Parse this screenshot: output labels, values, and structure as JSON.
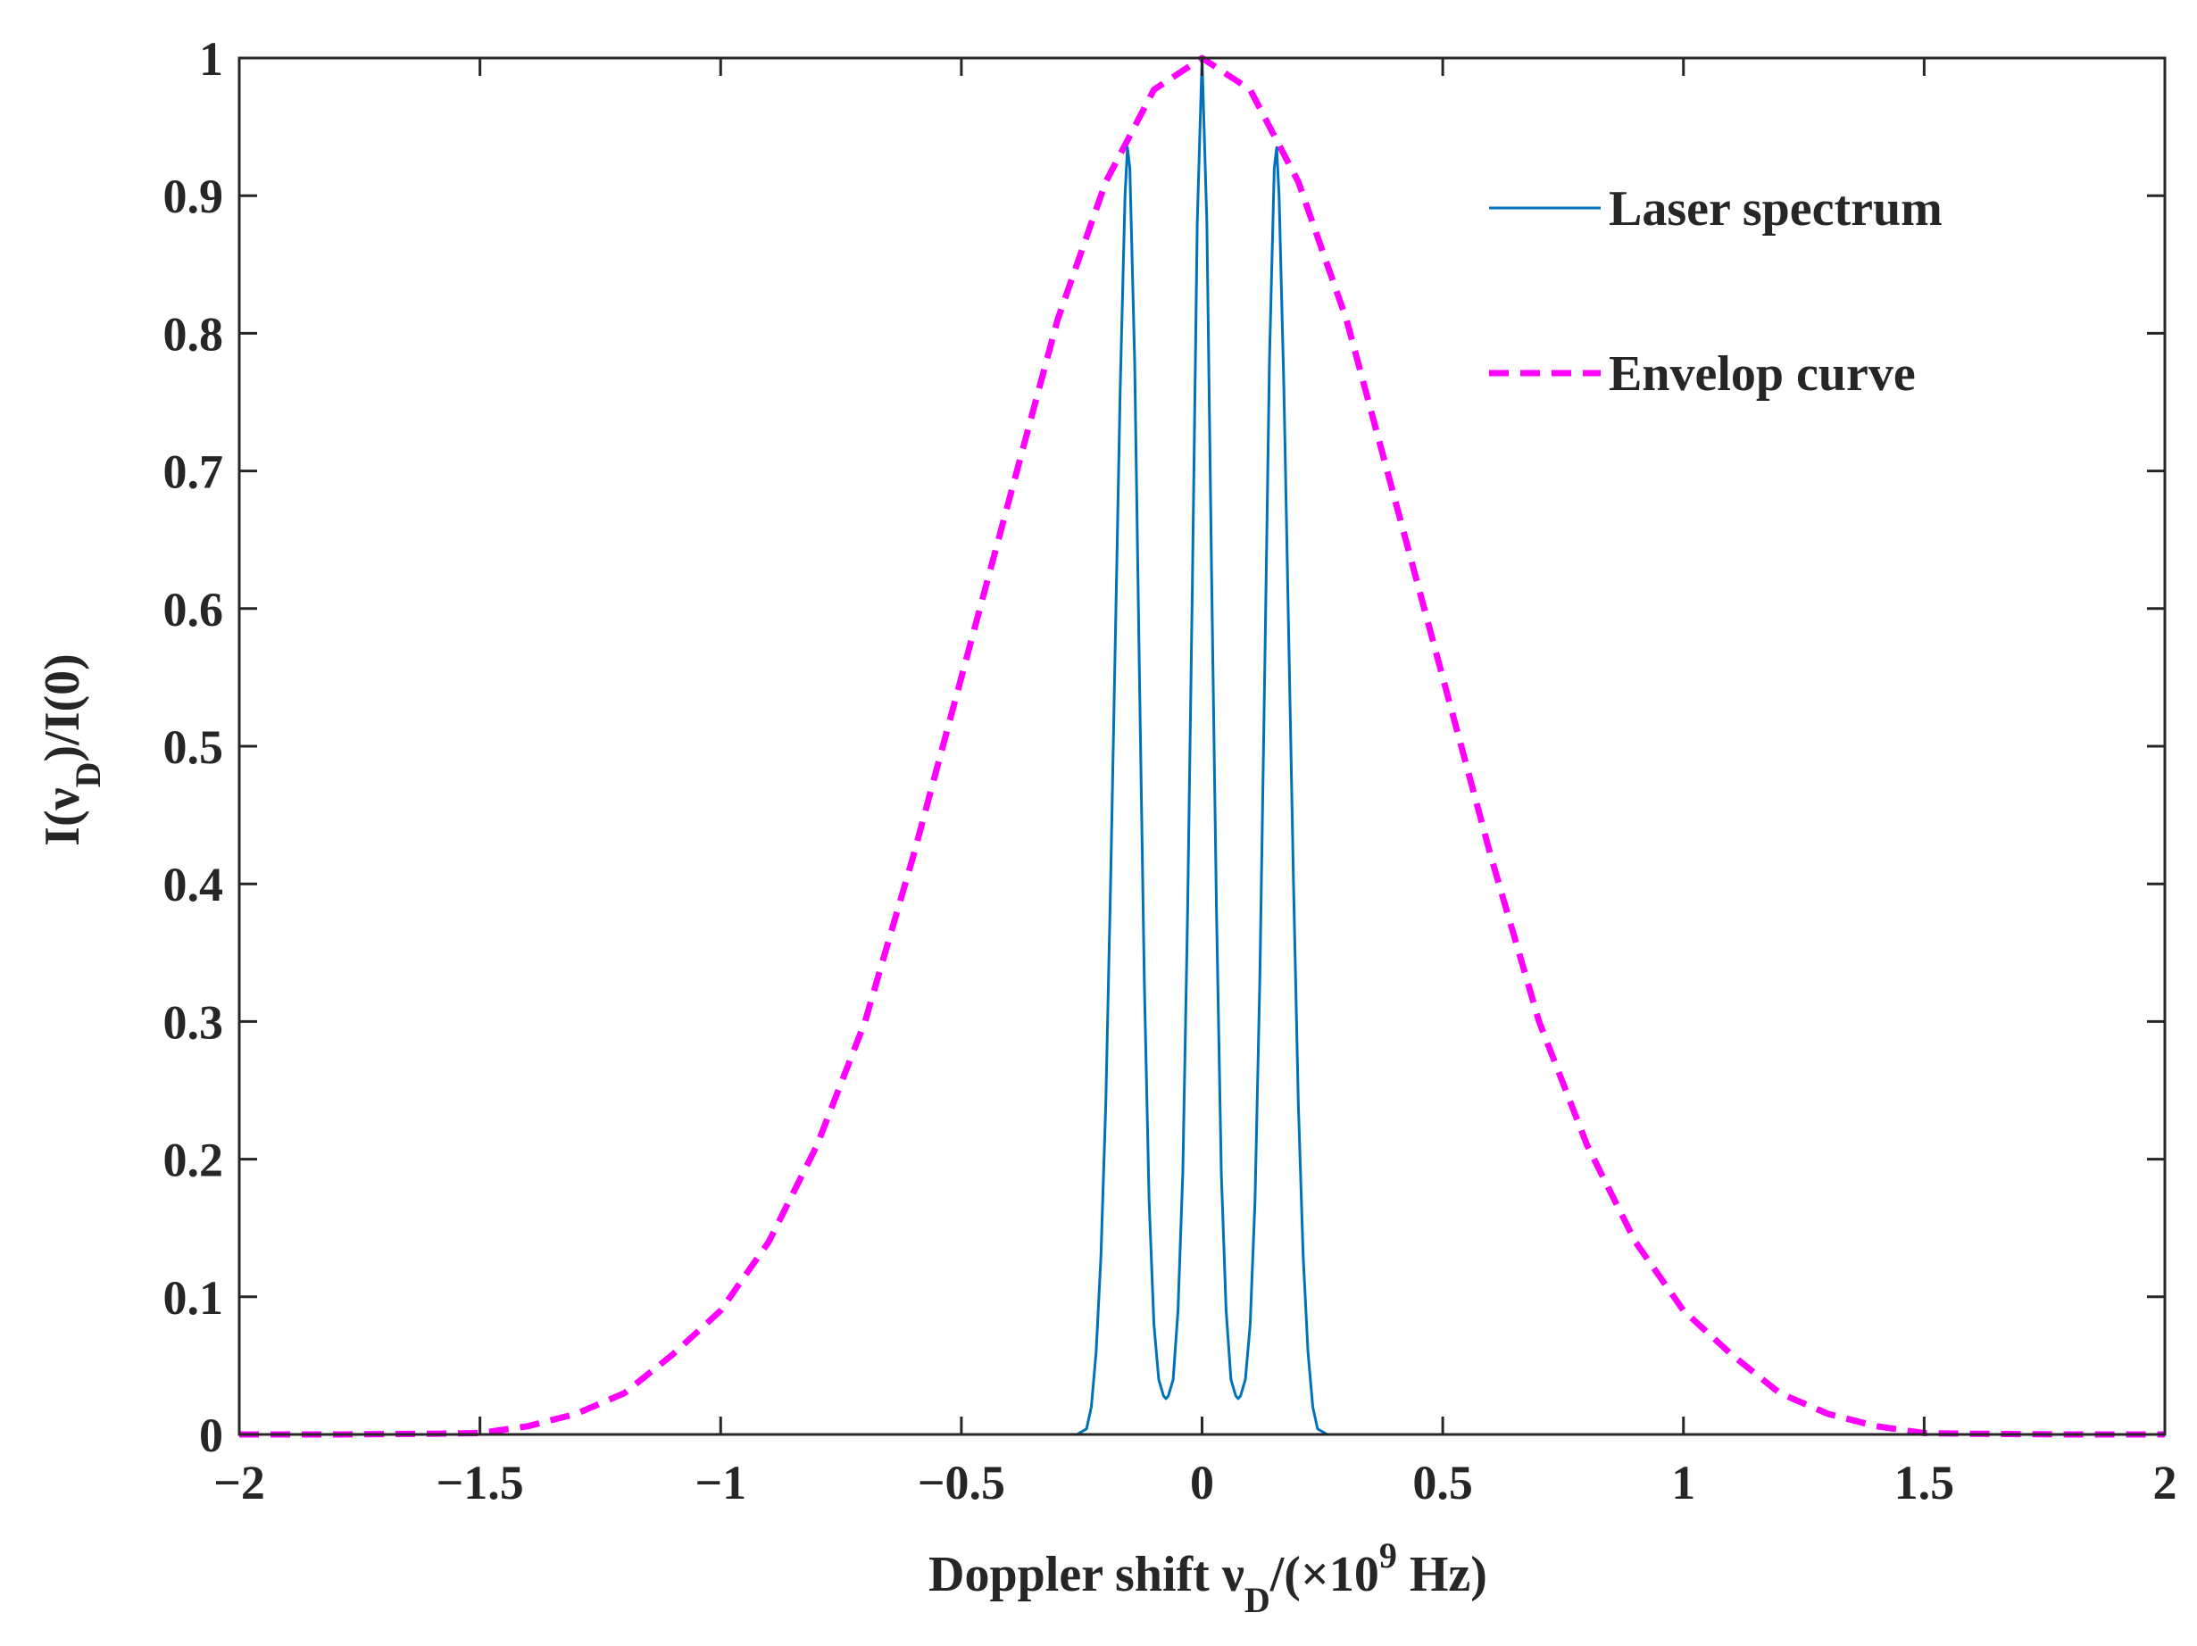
{
  "chart_data": {
    "type": "line",
    "xlabel": {
      "prefix": "Doppler shift ν",
      "sub": "D",
      "mid": "/(×10",
      "sup": "9",
      "suffix": " Hz)"
    },
    "ylabel": {
      "prefix": "I(ν",
      "sub": "D",
      "suffix": ")/I(0)"
    },
    "xlim": [
      -2,
      2
    ],
    "ylim": [
      0,
      1
    ],
    "xticks": [
      -2,
      -1.5,
      -1,
      -0.5,
      0,
      0.5,
      1,
      1.5,
      2
    ],
    "xtick_labels": [
      "−2",
      "−1.5",
      "−1",
      "−0.5",
      "0",
      "0.5",
      "1",
      "1.5",
      "2"
    ],
    "yticks": [
      0,
      0.1,
      0.2,
      0.3,
      0.4,
      0.5,
      0.6,
      0.7,
      0.8,
      0.9,
      1
    ],
    "ytick_labels": [
      "0",
      "0.1",
      "0.2",
      "0.3",
      "0.4",
      "0.5",
      "0.6",
      "0.7",
      "0.8",
      "0.9",
      "1"
    ],
    "grid": false,
    "legend_position": "top-right",
    "series": [
      {
        "name": "Laser spectrum",
        "color": "#0072bd",
        "style": "solid",
        "points": [
          [
            -2.0,
            0
          ],
          [
            -0.26,
            0
          ],
          [
            -0.24,
            0.004
          ],
          [
            -0.23,
            0.02
          ],
          [
            -0.22,
            0.06
          ],
          [
            -0.21,
            0.13
          ],
          [
            -0.2,
            0.24
          ],
          [
            -0.19,
            0.4
          ],
          [
            -0.18,
            0.58
          ],
          [
            -0.17,
            0.76
          ],
          [
            -0.16,
            0.9
          ],
          [
            -0.155,
            0.935
          ],
          [
            -0.15,
            0.92
          ],
          [
            -0.14,
            0.78
          ],
          [
            -0.13,
            0.55
          ],
          [
            -0.12,
            0.33
          ],
          [
            -0.11,
            0.17
          ],
          [
            -0.1,
            0.08
          ],
          [
            -0.09,
            0.04
          ],
          [
            -0.08,
            0.028
          ],
          [
            -0.075,
            0.026
          ],
          [
            -0.07,
            0.028
          ],
          [
            -0.06,
            0.04
          ],
          [
            -0.05,
            0.09
          ],
          [
            -0.04,
            0.19
          ],
          [
            -0.03,
            0.38
          ],
          [
            -0.02,
            0.62
          ],
          [
            -0.01,
            0.88
          ],
          [
            0.0,
            1.0
          ],
          [
            0.01,
            0.88
          ],
          [
            0.02,
            0.62
          ],
          [
            0.03,
            0.38
          ],
          [
            0.04,
            0.19
          ],
          [
            0.05,
            0.09
          ],
          [
            0.06,
            0.04
          ],
          [
            0.07,
            0.028
          ],
          [
            0.075,
            0.026
          ],
          [
            0.08,
            0.028
          ],
          [
            0.09,
            0.04
          ],
          [
            0.1,
            0.08
          ],
          [
            0.11,
            0.17
          ],
          [
            0.12,
            0.33
          ],
          [
            0.13,
            0.55
          ],
          [
            0.14,
            0.78
          ],
          [
            0.15,
            0.92
          ],
          [
            0.155,
            0.935
          ],
          [
            0.16,
            0.9
          ],
          [
            0.17,
            0.76
          ],
          [
            0.18,
            0.58
          ],
          [
            0.19,
            0.4
          ],
          [
            0.2,
            0.24
          ],
          [
            0.21,
            0.13
          ],
          [
            0.22,
            0.06
          ],
          [
            0.23,
            0.02
          ],
          [
            0.24,
            0.004
          ],
          [
            0.26,
            0
          ],
          [
            2.0,
            0
          ]
        ]
      },
      {
        "name": "Envelop curve",
        "color": "#ff00ff",
        "style": "dashed",
        "points": [
          [
            -2.0,
            0.0
          ],
          [
            -1.8,
            0.0
          ],
          [
            -1.6,
            0.0005
          ],
          [
            -1.5,
            0.001
          ],
          [
            -1.4,
            0.006
          ],
          [
            -1.3,
            0.015
          ],
          [
            -1.2,
            0.03
          ],
          [
            -1.1,
            0.058
          ],
          [
            -1.0,
            0.09
          ],
          [
            -0.9,
            0.14
          ],
          [
            -0.8,
            0.21
          ],
          [
            -0.7,
            0.3
          ],
          [
            -0.6,
            0.42
          ],
          [
            -0.5,
            0.55
          ],
          [
            -0.4,
            0.68
          ],
          [
            -0.3,
            0.81
          ],
          [
            -0.2,
            0.91
          ],
          [
            -0.1,
            0.977
          ],
          [
            0.0,
            1.0
          ],
          [
            0.1,
            0.977
          ],
          [
            0.2,
            0.91
          ],
          [
            0.3,
            0.81
          ],
          [
            0.4,
            0.68
          ],
          [
            0.5,
            0.55
          ],
          [
            0.6,
            0.42
          ],
          [
            0.7,
            0.3
          ],
          [
            0.8,
            0.21
          ],
          [
            0.9,
            0.14
          ],
          [
            1.0,
            0.09
          ],
          [
            1.1,
            0.058
          ],
          [
            1.2,
            0.03
          ],
          [
            1.3,
            0.015
          ],
          [
            1.4,
            0.006
          ],
          [
            1.5,
            0.001
          ],
          [
            1.6,
            0.0005
          ],
          [
            1.8,
            0.0
          ],
          [
            2.0,
            0.0
          ]
        ]
      }
    ]
  }
}
